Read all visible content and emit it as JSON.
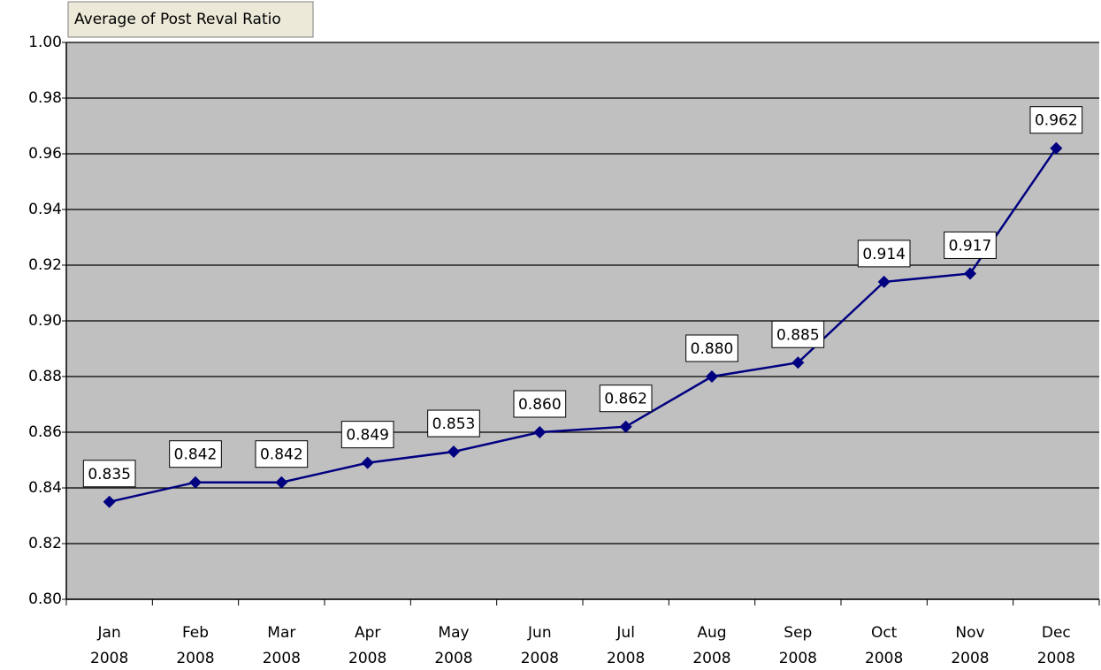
{
  "chart_data": {
    "type": "line",
    "title": "Average of Post Reval Ratio",
    "categories": [
      "Jan 2008",
      "Feb 2008",
      "Mar 2008",
      "Apr 2008",
      "May 2008",
      "Jun 2008",
      "Jul 2008",
      "Aug 2008",
      "Sep 2008",
      "Oct 2008",
      "Nov 2008",
      "Dec 2008"
    ],
    "series": [
      {
        "name": "Average of Post Reval Ratio",
        "color": "#000080",
        "values": [
          0.835,
          0.842,
          0.842,
          0.849,
          0.853,
          0.86,
          0.862,
          0.88,
          0.885,
          0.914,
          0.917,
          0.962
        ],
        "value_labels": [
          "0.835",
          "0.842",
          "0.842",
          "0.849",
          "0.853",
          "0.860",
          "0.862",
          "0.880",
          "0.885",
          "0.914",
          "0.917",
          "0.962"
        ]
      }
    ],
    "ylim": [
      0.8,
      1.0
    ],
    "yticks": [
      {
        "value": 0.8,
        "label": "0.80"
      },
      0.82,
      0.84,
      0.86,
      0.88,
      {
        "value": 0.9,
        "label": "0.90"
      },
      0.92,
      0.94,
      0.96,
      0.98,
      {
        "value": 1.0,
        "label": "1.00"
      }
    ],
    "grid": true,
    "plot_background": "#c0c0c0"
  }
}
